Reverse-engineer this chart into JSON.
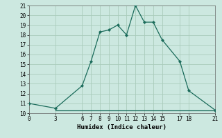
{
  "line_x": [
    0,
    3,
    6,
    7,
    8,
    9,
    10,
    11,
    12,
    13,
    14,
    15,
    17,
    18,
    21
  ],
  "line_y": [
    11,
    10.5,
    12.8,
    15.3,
    18.3,
    18.5,
    19.0,
    18.0,
    21.0,
    19.3,
    19.3,
    17.5,
    15.3,
    12.3,
    10.3
  ],
  "hline_x": [
    3,
    21
  ],
  "hline_y": [
    10.3,
    10.3
  ],
  "line_color": "#1a6b5a",
  "bg_color": "#cce8e0",
  "grid_color": "#aaccbb",
  "xlabel": "Humidex (Indice chaleur)",
  "xlim": [
    0,
    21
  ],
  "ylim": [
    10,
    21
  ],
  "xticks": [
    0,
    3,
    6,
    7,
    8,
    9,
    10,
    11,
    12,
    13,
    14,
    15,
    17,
    18,
    21
  ],
  "yticks": [
    10,
    11,
    12,
    13,
    14,
    15,
    16,
    17,
    18,
    19,
    20,
    21
  ],
  "xlabel_fontsize": 6.5,
  "tick_fontsize": 5.5
}
